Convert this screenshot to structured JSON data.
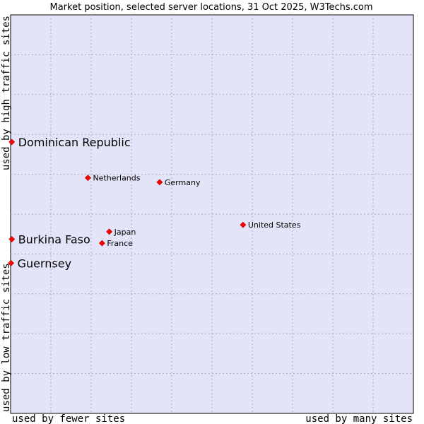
{
  "chart_data": {
    "type": "scatter",
    "title": "Market position, selected server locations, 31 Oct 2025, W3Techs.com",
    "xlabel_left": "used by fewer sites",
    "xlabel_right": "used by many sites",
    "ylabel_bottom": "used by low traffic sites",
    "ylabel_top": "used by high traffic sites",
    "xlim": [
      0,
      100
    ],
    "ylim": [
      0,
      100
    ],
    "grid": true,
    "colors": {
      "plot_background": "#e4e4f8",
      "grid": "#a8a8c4",
      "marker": "#ff0000",
      "text": "#000000"
    },
    "points": [
      {
        "label": "Dominican Republic",
        "x": 0.3,
        "y": 68.1,
        "highlight": true
      },
      {
        "label": "Burkina Faso",
        "x": 0.3,
        "y": 43.7,
        "highlight": true
      },
      {
        "label": "Guernsey",
        "x": 0.1,
        "y": 37.7,
        "highlight": true
      },
      {
        "label": "Netherlands",
        "x": 19.2,
        "y": 59.1,
        "highlight": false
      },
      {
        "label": "Germany",
        "x": 37.0,
        "y": 58.0,
        "highlight": false
      },
      {
        "label": "United States",
        "x": 57.7,
        "y": 47.3,
        "highlight": false
      },
      {
        "label": "Japan",
        "x": 24.5,
        "y": 45.6,
        "highlight": false
      },
      {
        "label": "France",
        "x": 22.7,
        "y": 42.7,
        "highlight": false
      }
    ]
  }
}
